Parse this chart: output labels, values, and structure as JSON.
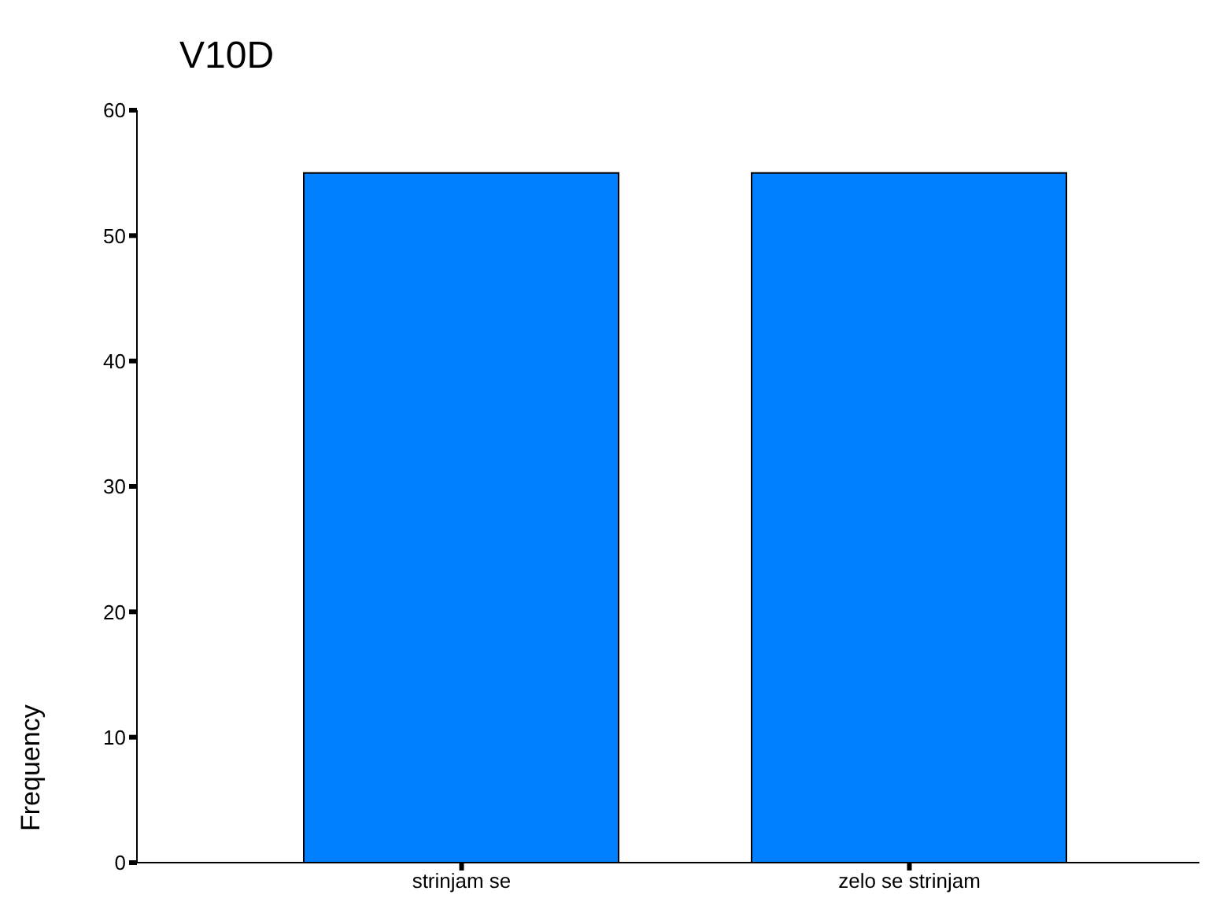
{
  "chart_data": {
    "type": "bar",
    "title": "V10D",
    "ylabel": "Frequency",
    "categories": [
      "strinjam se",
      "zelo se strinjam"
    ],
    "values": [
      55,
      55
    ],
    "color": "#0080ff",
    "ylim": [
      0,
      60
    ],
    "yticks": [
      0,
      10,
      20,
      30,
      40,
      50,
      60
    ],
    "grid": false
  }
}
